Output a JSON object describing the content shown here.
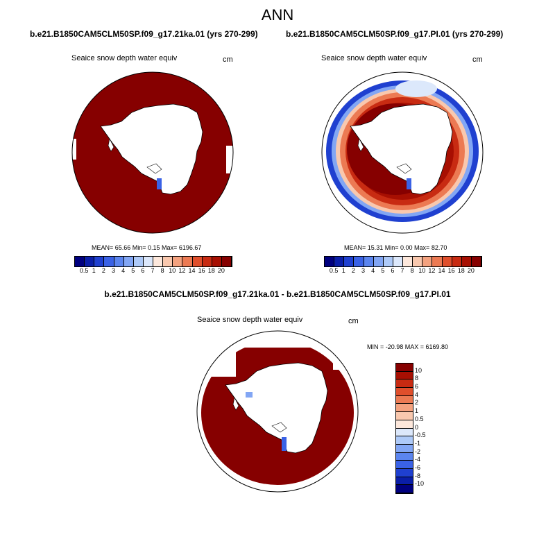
{
  "title": "ANN",
  "panels": [
    {
      "id": "top-left",
      "case_title": "b.e21.B1850CAM5CLM50SP.f09_g17.21ka.01 (yrs 270-299)",
      "variable": "Seaice snow depth water equiv",
      "units": "cm",
      "stats": "MEAN=  65.66  Min=   0.15  Max= 6196.67",
      "map_style": "full"
    },
    {
      "id": "top-right",
      "case_title": "b.e21.B1850CAM5CLM50SP.f09_g17.PI.01 (yrs 270-299)",
      "variable": "Seaice snow depth water equiv",
      "units": "cm",
      "stats": "MEAN=  15.31  Min=   0.00  Max=  82.70",
      "map_style": "ring"
    },
    {
      "id": "bottom",
      "case_title": "b.e21.B1850CAM5CLM50SP.f09_g17.21ka.01 - b.e21.B1850CAM5CLM50SP.f09_g17.PI.01",
      "variable": "Seaice snow depth water equiv",
      "units": "cm",
      "stats": "MIN = -20.98 MAX = 6169.80",
      "map_style": "diff"
    }
  ],
  "colorbar_abs": {
    "labels": [
      "0.5",
      "1",
      "2",
      "3",
      "4",
      "5",
      "6",
      "7",
      "8",
      "10",
      "12",
      "14",
      "16",
      "18",
      "20"
    ],
    "colors": [
      "#00007f",
      "#0a1ea8",
      "#1f40d0",
      "#3a62e6",
      "#5b85ef",
      "#82a6f4",
      "#aecaf8",
      "#dce8fb",
      "#fde8dc",
      "#f9c8ae",
      "#f4a27f",
      "#ec7a53",
      "#e04f2c",
      "#c82b12",
      "#a70f02",
      "#860000"
    ]
  },
  "colorbar_diff": {
    "labels": [
      "10",
      "8",
      "6",
      "4",
      "2",
      "1",
      "0.5",
      "0",
      "-0.5",
      "-1",
      "-2",
      "-4",
      "-6",
      "-8",
      "-10"
    ],
    "colors": [
      "#860000",
      "#a70f02",
      "#c82b12",
      "#e04f2c",
      "#ec7a53",
      "#f4a27f",
      "#f9c8ae",
      "#fde8dc",
      "#dce8fb",
      "#aecaf8",
      "#82a6f4",
      "#5b85ef",
      "#3a62e6",
      "#1f40d0",
      "#0a1ea8",
      "#00007f"
    ]
  }
}
